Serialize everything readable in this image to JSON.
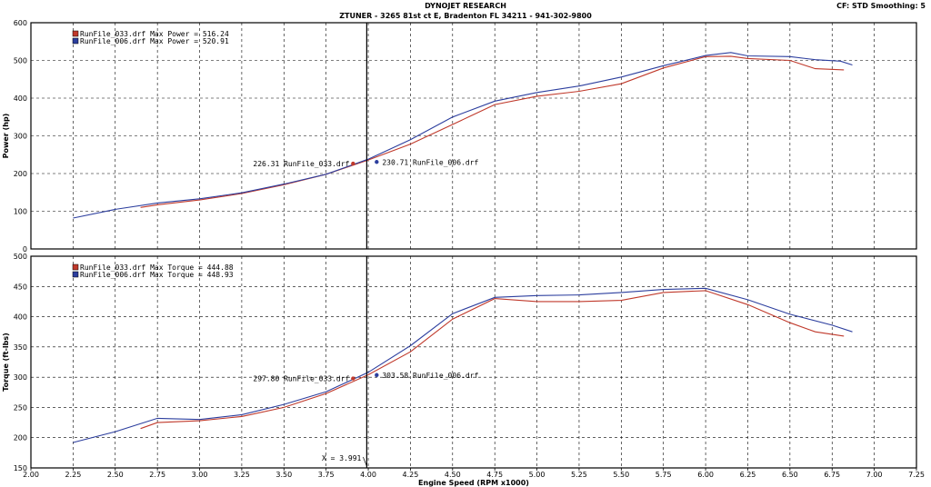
{
  "header": {
    "title": "DYNOJET RESEARCH",
    "subtitle": "ZTUNER - 3265 81st ct E, Bradenton FL 34211 - 941-302-9800",
    "cf_info": "CF: STD   Smoothing: 5"
  },
  "colors": {
    "run033": "#c0392b",
    "run006": "#2c3e9e",
    "grid": "#000000",
    "cursor": "#000000"
  },
  "chart_data": [
    {
      "type": "line",
      "ylabel": "Power (hp)",
      "xlabel": "",
      "xlim": [
        2.0,
        7.25
      ],
      "ylim": [
        0,
        600
      ],
      "yticks": [
        0,
        100,
        200,
        300,
        400,
        500,
        600
      ],
      "grid": true,
      "legend": [
        {
          "text": "RunFile_033.drf Max Power = 516.24",
          "color": "#c0392b"
        },
        {
          "text": "RunFile_006.drf Max Power = 520.91",
          "color": "#2c3e9e"
        }
      ],
      "cursor_values": [
        {
          "label": "226.31 RunFile_033.drf",
          "x": 3.91,
          "y": 226.31,
          "color": "#c0392b",
          "side": "left"
        },
        {
          "label": "230.71 RunFile_006.drf",
          "x": 4.05,
          "y": 230.71,
          "color": "#2c3e9e",
          "side": "right"
        }
      ],
      "series": [
        {
          "name": "RunFile_033.drf",
          "color": "#c0392b",
          "x": [
            2.65,
            2.75,
            3.0,
            3.25,
            3.5,
            3.75,
            4.0,
            4.25,
            4.5,
            4.75,
            5.0,
            5.25,
            5.5,
            5.75,
            6.0,
            6.15,
            6.25,
            6.5,
            6.65,
            6.82
          ],
          "y": [
            110,
            117,
            130,
            147,
            170,
            198,
            236,
            278,
            330,
            383,
            405,
            418,
            438,
            480,
            510,
            511,
            505,
            500,
            478,
            475
          ]
        },
        {
          "name": "RunFile_006.drf",
          "color": "#2c3e9e",
          "x": [
            2.25,
            2.5,
            2.75,
            3.0,
            3.25,
            3.5,
            3.75,
            4.0,
            4.25,
            4.5,
            4.75,
            5.0,
            5.25,
            5.5,
            5.75,
            6.0,
            6.15,
            6.25,
            6.5,
            6.65,
            6.8,
            6.87
          ],
          "y": [
            82,
            105,
            122,
            133,
            149,
            172,
            198,
            238,
            290,
            350,
            392,
            415,
            432,
            456,
            486,
            513,
            521,
            512,
            510,
            502,
            498,
            488
          ]
        }
      ]
    },
    {
      "type": "line",
      "ylabel": "Torque (ft-lbs)",
      "xlabel": "Engine Speed (RPM x1000)",
      "xlim": [
        2.0,
        7.25
      ],
      "ylim": [
        150,
        500
      ],
      "yticks": [
        150,
        200,
        250,
        300,
        350,
        400,
        450,
        500
      ],
      "xticks": [
        2.0,
        2.25,
        2.5,
        2.75,
        3.0,
        3.25,
        3.5,
        3.75,
        4.0,
        4.25,
        4.5,
        4.75,
        5.0,
        5.25,
        5.5,
        5.75,
        6.0,
        6.25,
        6.5,
        6.75,
        7.0,
        7.25
      ],
      "xtick_labels": [
        "2.00",
        "2.25",
        "2.50",
        "2.75",
        "3.00",
        "3.25",
        "3.50",
        "3.75",
        "4.00",
        "4.25",
        "4.50",
        "4.75",
        "5.00",
        "5.25",
        "5.50",
        "5.75",
        "6.00",
        "6.25",
        "6.50",
        "6.75",
        "7.00",
        "7.25"
      ],
      "grid": true,
      "legend": [
        {
          "text": "RunFile_033.drf Max Torque = 444.88",
          "color": "#c0392b"
        },
        {
          "text": "RunFile_006.drf Max Torque = 448.93",
          "color": "#2c3e9e"
        }
      ],
      "cursor_values": [
        {
          "label": "297.80 RunFile_033.drf",
          "x": 3.91,
          "y": 297.8,
          "color": "#c0392b",
          "side": "left"
        },
        {
          "label": "303.58 RunFile_006.drf",
          "x": 4.05,
          "y": 303.58,
          "color": "#2c3e9e",
          "side": "right"
        }
      ],
      "cursor_readout": "X = 3.991",
      "series": [
        {
          "name": "RunFile_033.drf",
          "color": "#c0392b",
          "x": [
            2.65,
            2.75,
            3.0,
            3.25,
            3.5,
            3.75,
            4.0,
            4.25,
            4.5,
            4.75,
            5.0,
            5.25,
            5.5,
            5.75,
            6.0,
            6.25,
            6.5,
            6.65,
            6.82
          ],
          "y": [
            215,
            225,
            228,
            235,
            250,
            273,
            304,
            342,
            396,
            430,
            425,
            425,
            427,
            440,
            443,
            420,
            390,
            375,
            368
          ]
        },
        {
          "name": "RunFile_006.drf",
          "color": "#2c3e9e",
          "x": [
            2.25,
            2.5,
            2.75,
            3.0,
            3.25,
            3.5,
            3.75,
            4.0,
            4.25,
            4.5,
            4.75,
            5.0,
            5.25,
            5.5,
            5.75,
            6.0,
            6.25,
            6.5,
            6.75,
            6.87
          ],
          "y": [
            192,
            210,
            232,
            230,
            238,
            255,
            276,
            308,
            352,
            405,
            432,
            435,
            436,
            440,
            445,
            447,
            428,
            404,
            386,
            375
          ]
        }
      ]
    }
  ]
}
